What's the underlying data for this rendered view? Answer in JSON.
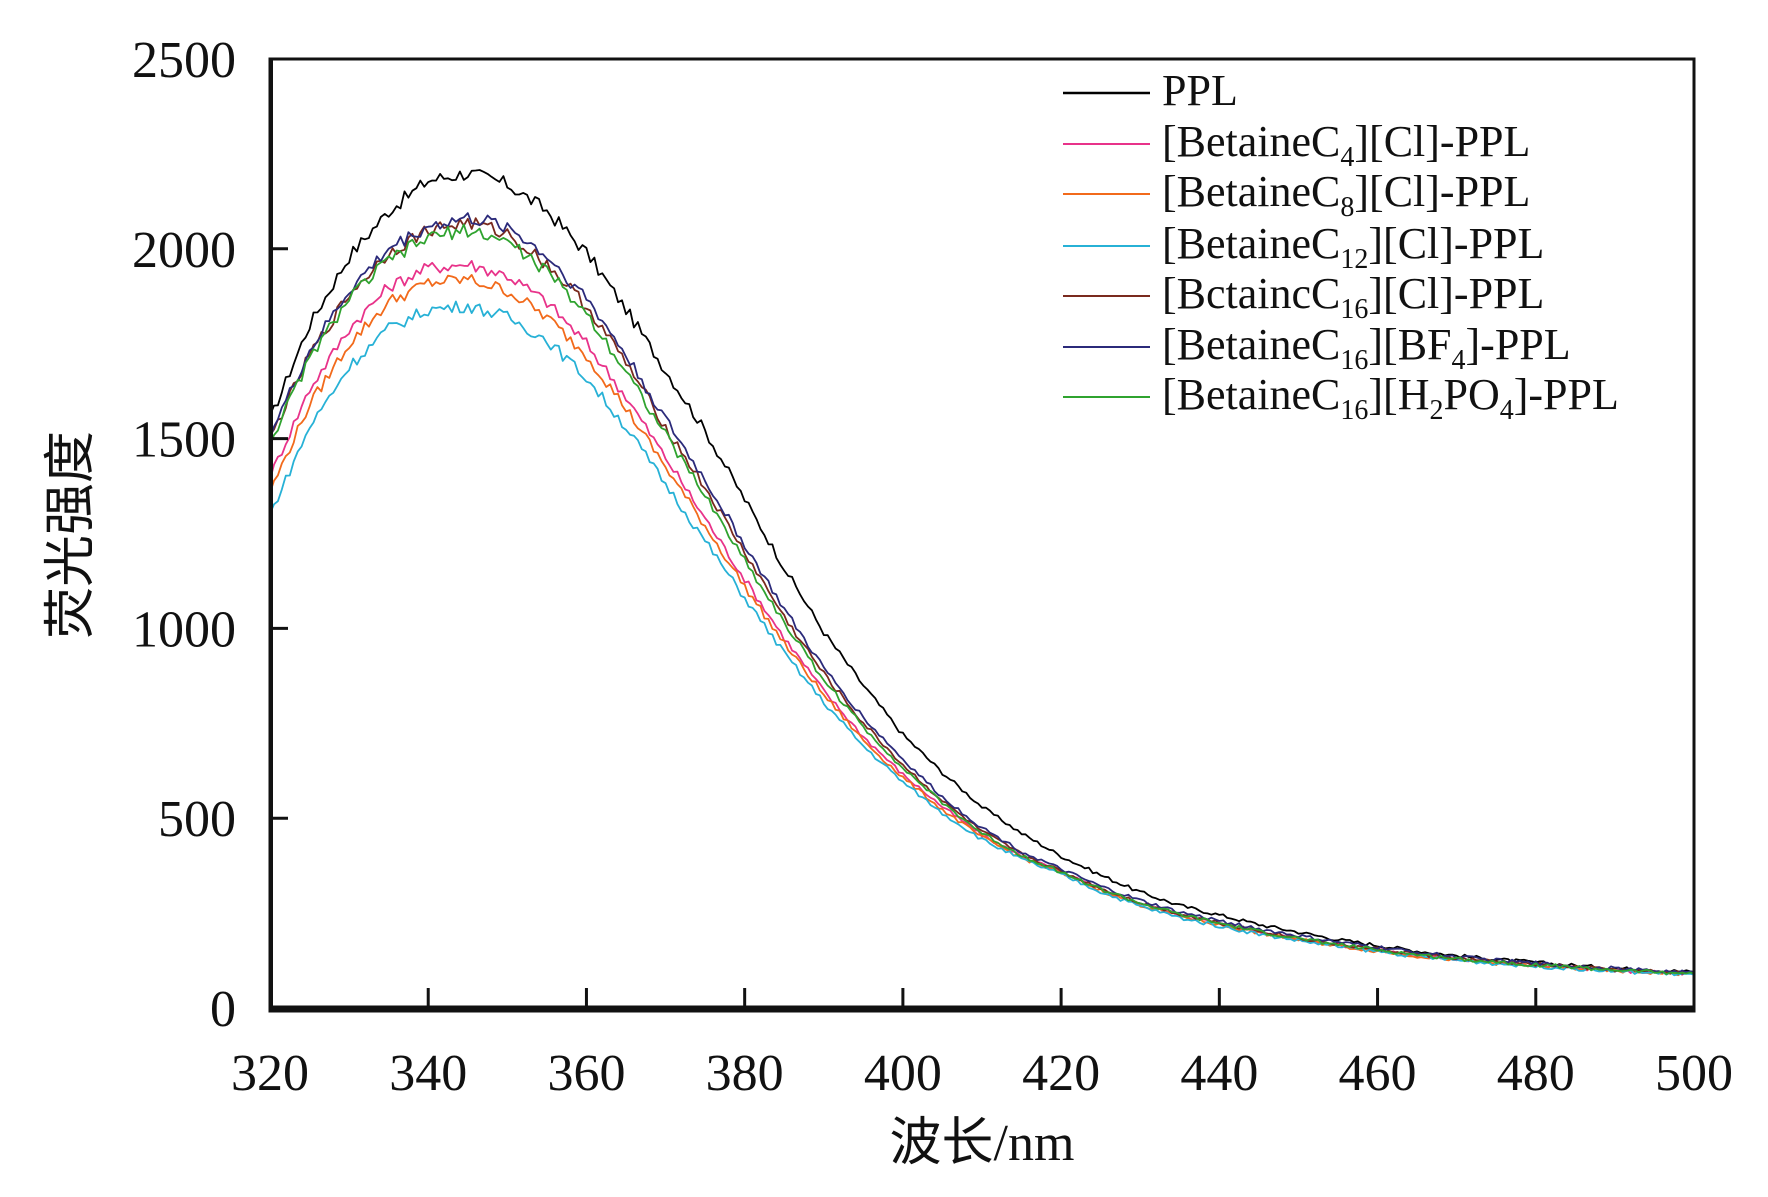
{
  "chart_data": {
    "type": "line",
    "title": "",
    "xlabel": "波长/nm",
    "ylabel": "荧光强度",
    "xlim": [
      320,
      500
    ],
    "ylim": [
      0,
      2500
    ],
    "xticks": [
      "320",
      "340",
      "360",
      "380",
      "400",
      "420",
      "440",
      "460",
      "480",
      "500"
    ],
    "yticks": [
      "0",
      "500",
      "1000",
      "1500",
      "2000",
      "2500"
    ],
    "grid": false,
    "legend_position": "top-right",
    "x": [
      320,
      325,
      330,
      335,
      340,
      345,
      350,
      355,
      360,
      365,
      370,
      375,
      380,
      385,
      390,
      395,
      400,
      405,
      410,
      415,
      420,
      425,
      430,
      435,
      440,
      445,
      450,
      455,
      460,
      465,
      470,
      475,
      480,
      485,
      490,
      495,
      500
    ],
    "series": [
      {
        "name": "PPL",
        "label_parts": [
          {
            "t": "PPL"
          }
        ],
        "color": "#000000",
        "values": [
          1550,
          1800,
          1980,
          2100,
          2180,
          2200,
          2170,
          2100,
          1990,
          1840,
          1680,
          1520,
          1340,
          1160,
          990,
          850,
          720,
          620,
          530,
          460,
          400,
          350,
          305,
          270,
          245,
          220,
          200,
          180,
          165,
          150,
          138,
          128,
          120,
          112,
          105,
          100,
          95
        ]
      },
      {
        "name": "[BetaineC4][Cl]-PPL",
        "label_parts": [
          {
            "t": "[BetaineC"
          },
          {
            "t": "4",
            "sub": true
          },
          {
            "t": "][Cl]-PPL"
          }
        ],
        "color": "#e8338a",
        "values": [
          1400,
          1630,
          1790,
          1900,
          1950,
          1960,
          1930,
          1860,
          1750,
          1610,
          1450,
          1290,
          1130,
          975,
          835,
          715,
          615,
          530,
          455,
          400,
          358,
          312,
          275,
          245,
          222,
          200,
          182,
          166,
          152,
          139,
          129,
          120,
          113,
          106,
          99,
          94,
          90
        ]
      },
      {
        "name": "[BetaineC8][Cl]-PPL",
        "label_parts": [
          {
            "t": "[BetaineC"
          },
          {
            "t": "8",
            "sub": true
          },
          {
            "t": "][Cl]-PPL"
          }
        ],
        "color": "#f26a1b",
        "values": [
          1360,
          1590,
          1750,
          1860,
          1910,
          1920,
          1890,
          1820,
          1720,
          1580,
          1425,
          1270,
          1110,
          960,
          825,
          705,
          607,
          522,
          450,
          396,
          355,
          310,
          272,
          242,
          219,
          198,
          180,
          164,
          150,
          137,
          127,
          118,
          111,
          104,
          98,
          93,
          89
        ]
      },
      {
        "name": "[BetaineC12][Cl]-PPL",
        "label_parts": [
          {
            "t": "[BetaineC"
          },
          {
            "t": "12",
            "sub": true
          },
          {
            "t": "][Cl]-PPL"
          }
        ],
        "color": "#27b1d6",
        "values": [
          1300,
          1530,
          1690,
          1790,
          1840,
          1850,
          1820,
          1760,
          1660,
          1530,
          1380,
          1230,
          1080,
          935,
          805,
          690,
          595,
          513,
          444,
          392,
          352,
          306,
          268,
          238,
          216,
          195,
          178,
          162,
          149,
          136,
          126,
          117,
          110,
          103,
          97,
          92,
          88
        ]
      },
      {
        "name": "[BctaincC16][Cl]-PPL",
        "label_parts": [
          {
            "t": "[BctaincC"
          },
          {
            "t": "16",
            "sub": true
          },
          {
            "t": "][Cl]-PPL"
          }
        ],
        "color": "#7a2a1e",
        "values": [
          1500,
          1720,
          1880,
          1990,
          2050,
          2070,
          2040,
          1960,
          1850,
          1700,
          1530,
          1370,
          1200,
          1030,
          880,
          750,
          640,
          545,
          465,
          405,
          360,
          315,
          278,
          248,
          225,
          203,
          185,
          168,
          155,
          142,
          131,
          122,
          115,
          108,
          101,
          96,
          92
        ]
      },
      {
        "name": "[BetaineC16][BF4]-PPL",
        "label_parts": [
          {
            "t": "[BetaineC"
          },
          {
            "t": "16",
            "sub": true
          },
          {
            "t": "][BF"
          },
          {
            "t": "4",
            "sub": true
          },
          {
            "t": "]-PPL"
          }
        ],
        "color": "#2b2a7a",
        "values": [
          1510,
          1730,
          1890,
          2000,
          2060,
          2080,
          2060,
          1980,
          1870,
          1720,
          1550,
          1390,
          1220,
          1050,
          895,
          765,
          655,
          555,
          475,
          412,
          365,
          320,
          283,
          252,
          230,
          208,
          190,
          173,
          160,
          147,
          135,
          126,
          118,
          110,
          104,
          98,
          94
        ]
      },
      {
        "name": "[BetaineC16][H2PO4]-PPL",
        "label_parts": [
          {
            "t": "[BetaineC"
          },
          {
            "t": "16",
            "sub": true
          },
          {
            "t": "][H"
          },
          {
            "t": "2",
            "sub": true
          },
          {
            "t": "PO"
          },
          {
            "t": "4",
            "sub": true
          },
          {
            "t": "]-PPL"
          }
        ],
        "color": "#2fa32f",
        "values": [
          1490,
          1710,
          1870,
          1970,
          2030,
          2050,
          2020,
          1940,
          1830,
          1680,
          1510,
          1350,
          1180,
          1015,
          865,
          740,
          632,
          540,
          460,
          402,
          358,
          313,
          276,
          246,
          223,
          201,
          183,
          167,
          153,
          140,
          130,
          121,
          114,
          107,
          100,
          95,
          91
        ]
      }
    ]
  }
}
